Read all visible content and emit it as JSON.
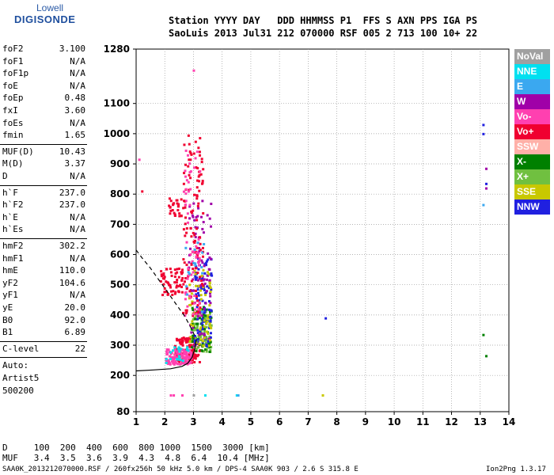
{
  "logo": {
    "top": "Lowell",
    "main": "DIGISONDE"
  },
  "header": {
    "line1": "Station YYYY DAY   DDD HHMMSS P1  FFS S AXN PPS IGA PS",
    "line2": "SaoLuis 2013 Jul31 212 070000 RSF 005 2 713 100 10+ 22"
  },
  "params": {
    "group1": [
      {
        "k": "foF2",
        "v": "3.100"
      },
      {
        "k": "foF1",
        "v": "N/A"
      },
      {
        "k": "foF1p",
        "v": "N/A"
      },
      {
        "k": "foE",
        "v": "N/A"
      },
      {
        "k": "foEp",
        "v": "0.48"
      },
      {
        "k": "fxI",
        "v": "3.60"
      },
      {
        "k": "foEs",
        "v": "N/A"
      },
      {
        "k": "fmin",
        "v": "1.65"
      }
    ],
    "group2": [
      {
        "k": "MUF(D)",
        "v": "10.43"
      },
      {
        "k": "M(D)",
        "v": "3.37"
      },
      {
        "k": "D",
        "v": "N/A"
      }
    ],
    "group3": [
      {
        "k": "h`F",
        "v": "237.0"
      },
      {
        "k": "h`F2",
        "v": "237.0"
      },
      {
        "k": "h`E",
        "v": "N/A"
      },
      {
        "k": "h`Es",
        "v": "N/A"
      }
    ],
    "group4": [
      {
        "k": "hmF2",
        "v": "302.2"
      },
      {
        "k": "hmF1",
        "v": "N/A"
      },
      {
        "k": "hmE",
        "v": "110.0"
      },
      {
        "k": "yF2",
        "v": "104.6"
      },
      {
        "k": "yF1",
        "v": "N/A"
      },
      {
        "k": "yE",
        "v": "20.0"
      },
      {
        "k": "B0",
        "v": "92.0"
      },
      {
        "k": "B1",
        "v": "6.89"
      }
    ],
    "clevel": {
      "k": "C-level",
      "v": "22"
    },
    "auto": [
      "Auto:",
      "Artist5",
      "500200"
    ]
  },
  "legend": [
    {
      "label": "NoVal",
      "color": "#a0a0a0"
    },
    {
      "label": "NNE",
      "color": "#00e0f0"
    },
    {
      "label": "E",
      "color": "#3aa8f0"
    },
    {
      "label": "W",
      "color": "#a000a8"
    },
    {
      "label": "Vo-",
      "color": "#ff40b0"
    },
    {
      "label": "Vo+",
      "color": "#f00030"
    },
    {
      "label": "SSW",
      "color": "#ffb0a8"
    },
    {
      "label": "X-",
      "color": "#008000"
    },
    {
      "label": "X+",
      "color": "#70c040"
    },
    {
      "label": "SSE",
      "color": "#c8c800"
    },
    {
      "label": "NNW",
      "color": "#2020e0"
    }
  ],
  "bottom": {
    "line1": "D     100  200  400  600  800 1000  1500  3000 [km]",
    "line2": "MUF   3.4  3.5  3.6  3.9  4.3  4.8  6.4  10.4 [MHz]"
  },
  "footer": {
    "left": "SAA0K_2013212070000.RSF / 260fx256h 50 kHz 5.0 km / DPS-4 SAA0K 903 / 2.6 S 315.8 E",
    "right": "Ion2Png 1.3.17"
  },
  "chart_data": {
    "type": "scatter",
    "title": "",
    "xlabel": "",
    "ylabel": "",
    "xlim": [
      1,
      14
    ],
    "ylim": [
      80,
      1280
    ],
    "xticks": [
      1,
      2,
      3,
      4,
      5,
      6,
      7,
      8,
      9,
      10,
      11,
      12,
      13,
      14
    ],
    "yticks": [
      80,
      200,
      300,
      400,
      500,
      600,
      700,
      800,
      900,
      1000,
      1100,
      1280
    ],
    "grid": true,
    "profile_solid": [
      [
        1.0,
        215
      ],
      [
        1.6,
        218
      ],
      [
        2.2,
        222
      ],
      [
        2.6,
        230
      ],
      [
        2.8,
        240
      ],
      [
        2.95,
        260
      ],
      [
        3.05,
        290
      ],
      [
        3.1,
        320
      ]
    ],
    "profile_dashed": [
      [
        1.0,
        615
      ],
      [
        1.2,
        590
      ],
      [
        1.5,
        555
      ],
      [
        1.8,
        515
      ],
      [
        2.1,
        475
      ],
      [
        2.4,
        435
      ],
      [
        2.7,
        395
      ],
      [
        2.9,
        360
      ],
      [
        3.05,
        330
      ]
    ],
    "clusters": [
      {
        "series": "Vo+",
        "color": "#f00030",
        "x": [
          2.3,
          3.2
        ],
        "y": [
          245,
          330
        ],
        "n": 140
      },
      {
        "series": "Vo-",
        "color": "#ff40b0",
        "x": [
          2.0,
          2.9
        ],
        "y": [
          240,
          290
        ],
        "n": 110
      },
      {
        "series": "X+",
        "color": "#70c040",
        "x": [
          2.9,
          3.6
        ],
        "y": [
          280,
          420
        ],
        "n": 90
      },
      {
        "series": "X-",
        "color": "#008000",
        "x": [
          2.9,
          3.6
        ],
        "y": [
          280,
          440
        ],
        "n": 50
      },
      {
        "series": "NNW",
        "color": "#2020e0",
        "x": [
          3.0,
          3.6
        ],
        "y": [
          300,
          600
        ],
        "n": 90
      },
      {
        "series": "W",
        "color": "#a000a8",
        "x": [
          2.8,
          3.6
        ],
        "y": [
          300,
          800
        ],
        "n": 80
      },
      {
        "series": "SSE",
        "color": "#c8c800",
        "x": [
          2.8,
          3.6
        ],
        "y": [
          300,
          560
        ],
        "n": 60
      },
      {
        "series": "Vo+",
        "color": "#f00030",
        "x": [
          2.6,
          3.3
        ],
        "y": [
          400,
          1000
        ],
        "n": 120
      },
      {
        "series": "Vo-",
        "color": "#ff40b0",
        "x": [
          2.6,
          3.2
        ],
        "y": [
          400,
          950
        ],
        "n": 60
      },
      {
        "series": "Vo+",
        "color": "#f00030",
        "x": [
          1.8,
          2.6
        ],
        "y": [
          470,
          560
        ],
        "n": 60
      },
      {
        "series": "Vo+",
        "color": "#f00030",
        "x": [
          2.1,
          2.7
        ],
        "y": [
          730,
          790
        ],
        "n": 30
      },
      {
        "series": "NNE",
        "color": "#00e0f0",
        "x": [
          2.0,
          2.8
        ],
        "y": [
          240,
          300
        ],
        "n": 20
      },
      {
        "series": "E",
        "color": "#3aa8f0",
        "x": [
          2.6,
          3.4
        ],
        "y": [
          400,
          700
        ],
        "n": 15
      }
    ],
    "scatter_points": [
      {
        "x": 13.1,
        "y": 1030,
        "color": "#2020e0"
      },
      {
        "x": 13.1,
        "y": 1000,
        "color": "#2020e0"
      },
      {
        "x": 13.2,
        "y": 885,
        "color": "#a000a8"
      },
      {
        "x": 13.2,
        "y": 835,
        "color": "#2020e0"
      },
      {
        "x": 13.2,
        "y": 820,
        "color": "#a000a8"
      },
      {
        "x": 13.1,
        "y": 765,
        "color": "#3aa8f0"
      },
      {
        "x": 13.1,
        "y": 335,
        "color": "#008000"
      },
      {
        "x": 13.2,
        "y": 265,
        "color": "#008000"
      },
      {
        "x": 7.6,
        "y": 390,
        "color": "#2020e0"
      },
      {
        "x": 7.5,
        "y": 135,
        "color": "#c8c800"
      },
      {
        "x": 4.5,
        "y": 135,
        "color": "#00e0f0"
      },
      {
        "x": 4.55,
        "y": 135,
        "color": "#3aa8f0"
      },
      {
        "x": 2.2,
        "y": 135,
        "color": "#ff40b0"
      },
      {
        "x": 2.3,
        "y": 135,
        "color": "#ff40b0"
      },
      {
        "x": 2.6,
        "y": 135,
        "color": "#ff40b0"
      },
      {
        "x": 3.0,
        "y": 135,
        "color": "#a0a0a0"
      },
      {
        "x": 3.4,
        "y": 135,
        "color": "#00e0f0"
      },
      {
        "x": 1.2,
        "y": 810,
        "color": "#f00030"
      },
      {
        "x": 1.1,
        "y": 915,
        "color": "#ff40b0"
      },
      {
        "x": 3.0,
        "y": 1210,
        "color": "#ff40b0"
      }
    ]
  }
}
